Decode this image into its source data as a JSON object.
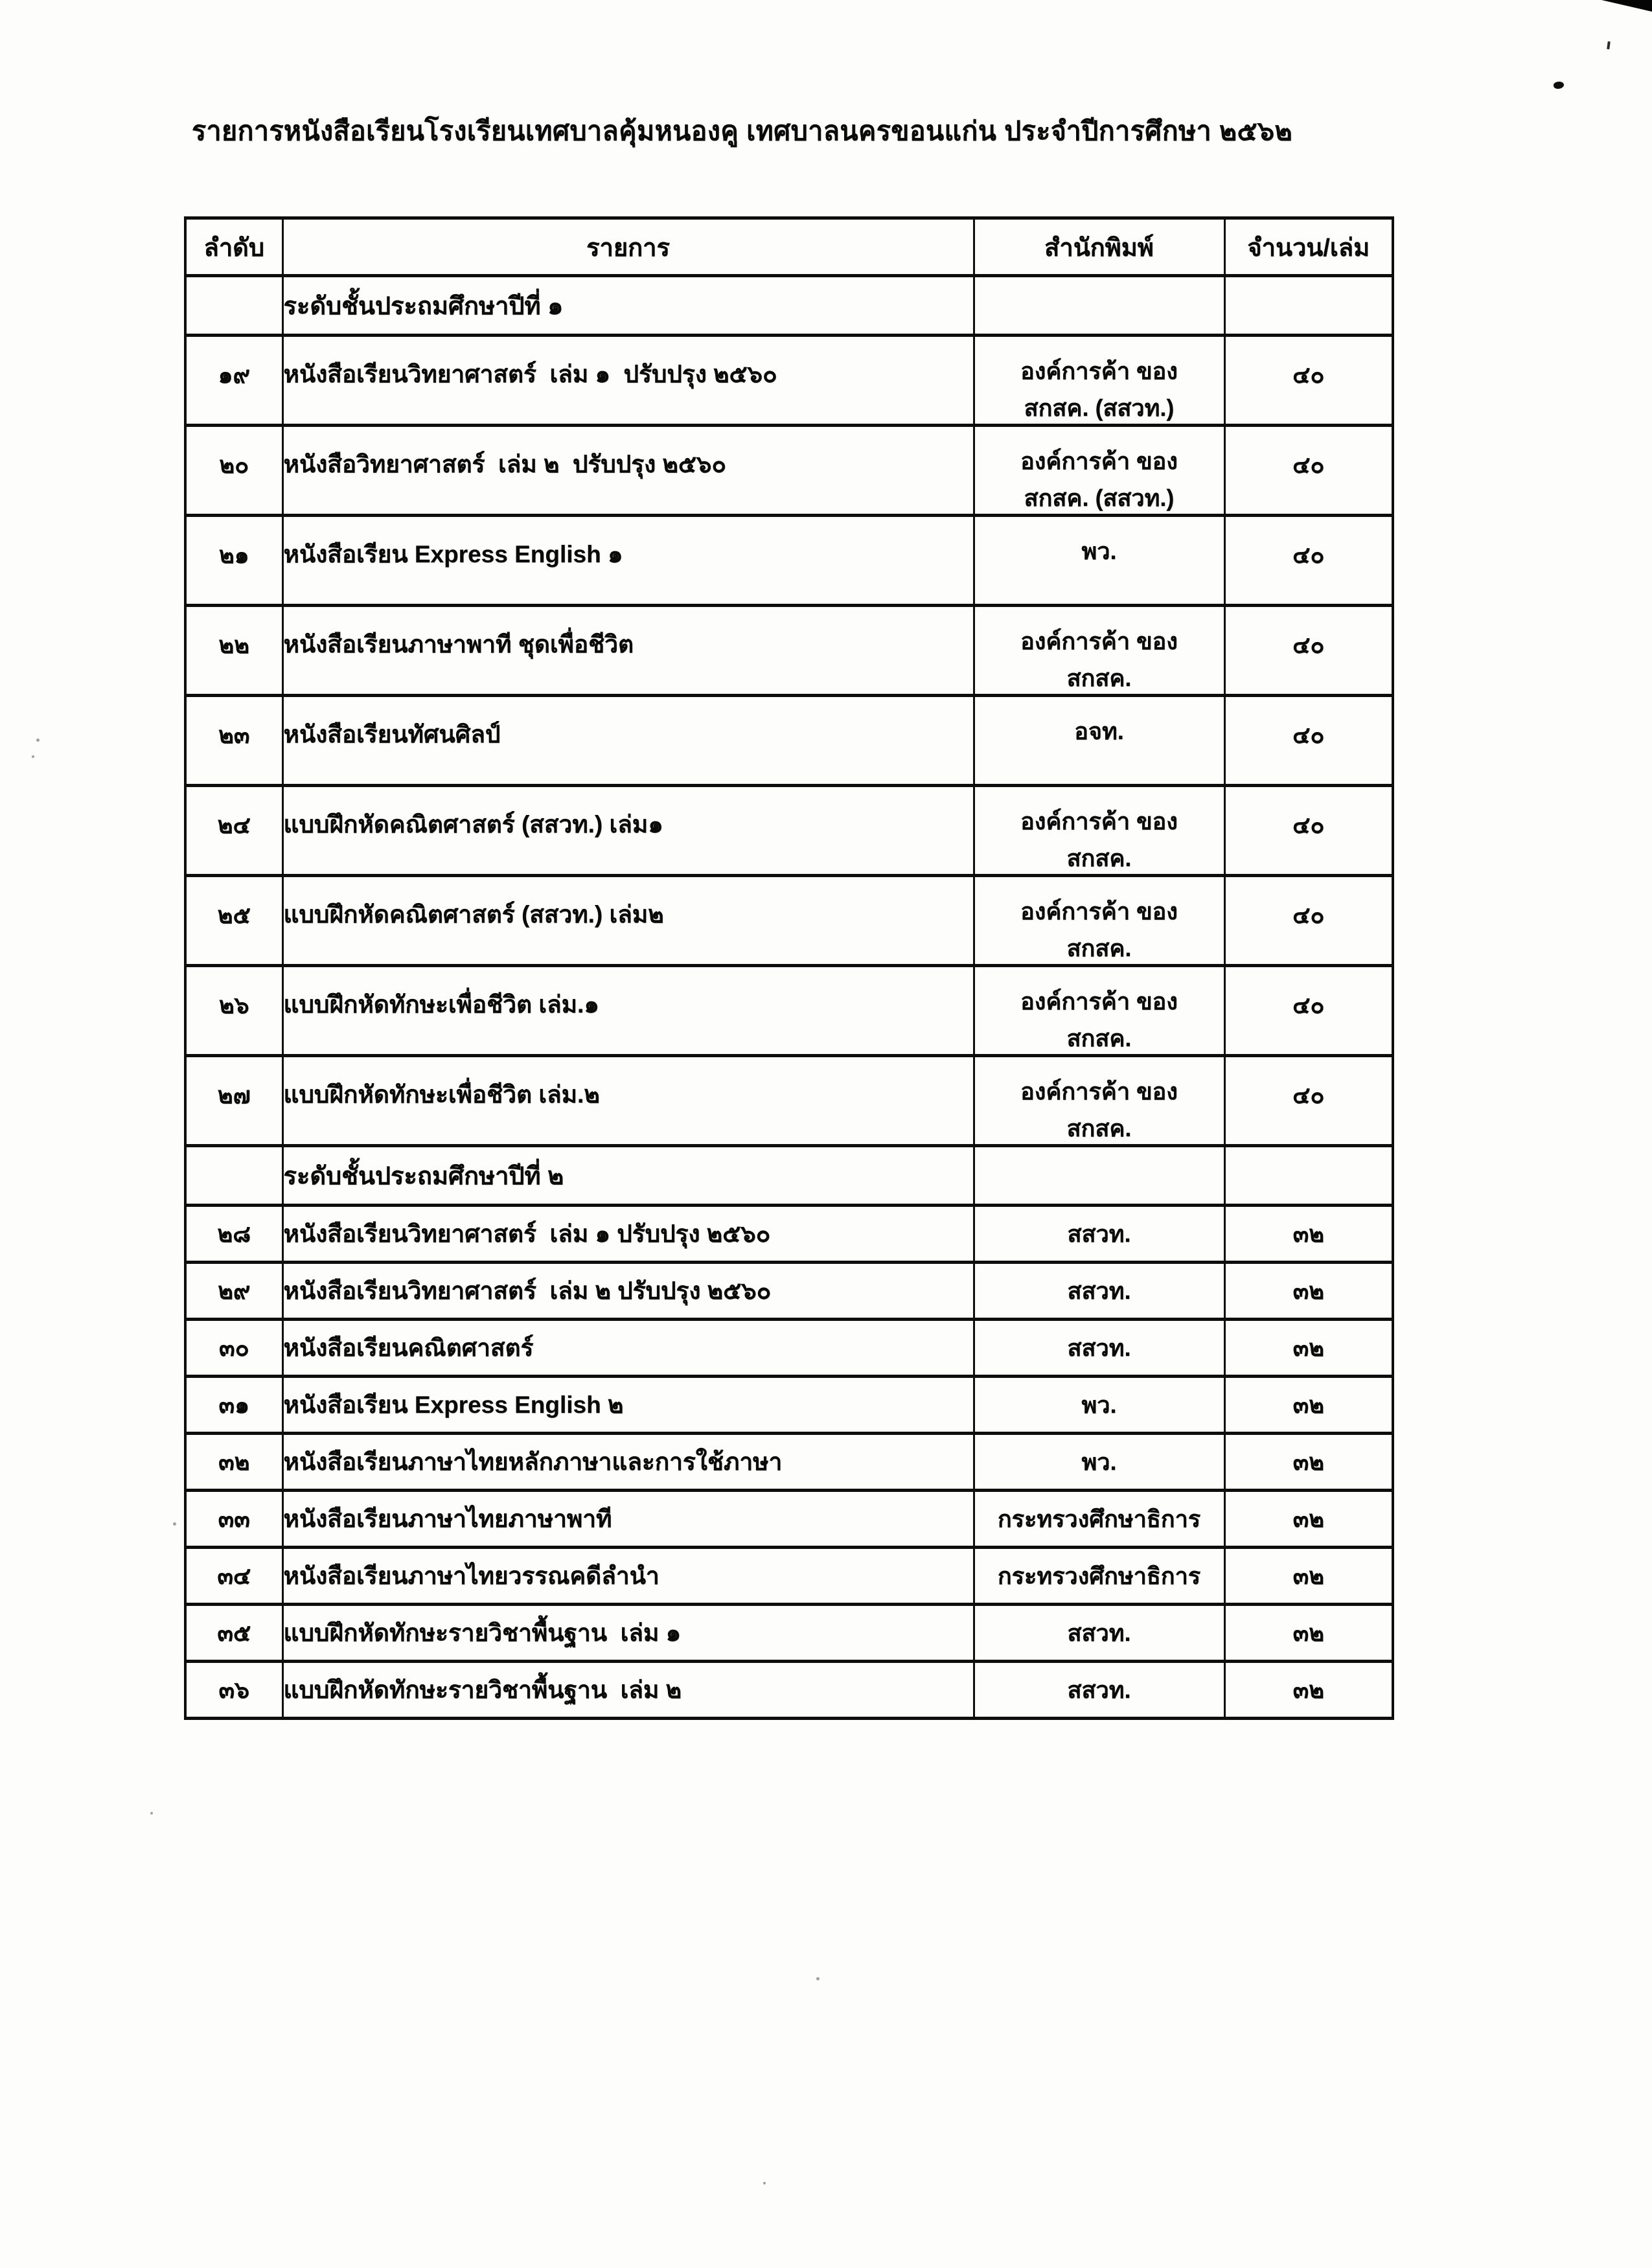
{
  "page": {
    "title": "รายการหนังสือเรียนโรงเรียนเทศบาลคุ้มหนองคู เทศบาลนครขอนแก่น ประจำปีการศึกษา ๒๕๖๒"
  },
  "table": {
    "headers": [
      "ลำดับ",
      "รายการ",
      "สำนักพิมพ์",
      "จำนวน/เล่ม"
    ],
    "rows": [
      {
        "type": "section",
        "label": "ระดับชั้นประถมศึกษาปีที่ ๑"
      },
      {
        "type": "item",
        "no": "๑๙",
        "item": "หนังสือเรียนวิทยาศาสตร์  เล่ม ๑  ปรับปรุง ๒๕๖๐",
        "publisher_lines": [
          "องค์การค้า ของ",
          "สกสค. (สสวท.)"
        ],
        "qty": "๔๐"
      },
      {
        "type": "item",
        "no": "๒๐",
        "item": "หนังสือวิทยาศาสตร์  เล่ม ๒  ปรับปรุง ๒๕๖๐",
        "publisher_lines": [
          "องค์การค้า ของ",
          "สกสค. (สสวท.)"
        ],
        "qty": "๔๐"
      },
      {
        "type": "item",
        "no": "๒๑",
        "item": "หนังสือเรียน Express English ๑",
        "publisher_lines": [
          "พว."
        ],
        "qty": "๔๐"
      },
      {
        "type": "item",
        "no": "๒๒",
        "item": "หนังสือเรียนภาษาพาที ชุดเพื่อชีวิต",
        "publisher_lines": [
          "องค์การค้า ของ",
          "สกสค."
        ],
        "qty": "๔๐"
      },
      {
        "type": "item",
        "no": "๒๓",
        "item": "หนังสือเรียนทัศนศิลป์",
        "publisher_lines": [
          "อจท."
        ],
        "qty": "๔๐"
      },
      {
        "type": "item",
        "no": "๒๔",
        "item": "แบบฝึกหัดคณิตศาสตร์ (สสวท.) เล่ม๑",
        "publisher_lines": [
          "องค์การค้า ของ",
          "สกสค."
        ],
        "qty": "๔๐"
      },
      {
        "type": "item",
        "no": "๒๕",
        "item": "แบบฝึกหัดคณิตศาสตร์ (สสวท.) เล่ม๒",
        "publisher_lines": [
          "องค์การค้า ของ",
          "สกสค."
        ],
        "qty": "๔๐"
      },
      {
        "type": "item",
        "no": "๒๖",
        "item": "แบบฝึกหัดทักษะเพื่อชีวิต เล่ม.๑",
        "publisher_lines": [
          "องค์การค้า ของ",
          "สกสค."
        ],
        "qty": "๔๐"
      },
      {
        "type": "item",
        "no": "๒๗",
        "item": "แบบฝึกหัดทักษะเพื่อชีวิต เล่ม.๒",
        "publisher_lines": [
          "องค์การค้า ของ",
          "สกสค."
        ],
        "qty": "๔๐"
      },
      {
        "type": "section",
        "label": "ระดับชั้นประถมศึกษาปีที่ ๒"
      },
      {
        "type": "item",
        "no": "๒๘",
        "item": "หนังสือเรียนวิทยาศาสตร์  เล่ม ๑ ปรับปรุง ๒๕๖๐",
        "publisher_lines": [
          "สสวท."
        ],
        "qty": "๓๒"
      },
      {
        "type": "item",
        "no": "๒๙",
        "item": "หนังสือเรียนวิทยาศาสตร์  เล่ม ๒ ปรับปรุง ๒๕๖๐",
        "publisher_lines": [
          "สสวท."
        ],
        "qty": "๓๒"
      },
      {
        "type": "item",
        "no": "๓๐",
        "item": "หนังสือเรียนคณิตศาสตร์",
        "publisher_lines": [
          "สสวท."
        ],
        "qty": "๓๒"
      },
      {
        "type": "item",
        "no": "๓๑",
        "item": "หนังสือเรียน Express English ๒",
        "publisher_lines": [
          "พว."
        ],
        "qty": "๓๒"
      },
      {
        "type": "item",
        "no": "๓๒",
        "item": "หนังสือเรียนภาษาไทยหลักภาษาและการใช้ภาษา",
        "publisher_lines": [
          "พว."
        ],
        "qty": "๓๒"
      },
      {
        "type": "item",
        "no": "๓๓",
        "item": "หนังสือเรียนภาษาไทยภาษาพาที",
        "publisher_lines": [
          "กระทรวงศึกษาธิการ"
        ],
        "qty": "๓๒"
      },
      {
        "type": "item",
        "no": "๓๔",
        "item": "หนังสือเรียนภาษาไทยวรรณคดีลำนำ",
        "publisher_lines": [
          "กระทรวงศึกษาธิการ"
        ],
        "qty": "๓๒"
      },
      {
        "type": "item",
        "no": "๓๕",
        "item": "แบบฝึกหัดทักษะรายวิชาพื้นฐาน  เล่ม ๑",
        "publisher_lines": [
          "สสวท."
        ],
        "qty": "๓๒"
      },
      {
        "type": "item",
        "no": "๓๖",
        "item": "แบบฝึกหัดทักษะรายวิชาพื้นฐาน  เล่ม ๒",
        "publisher_lines": [
          "สสวท."
        ],
        "qty": "๓๒"
      }
    ]
  }
}
